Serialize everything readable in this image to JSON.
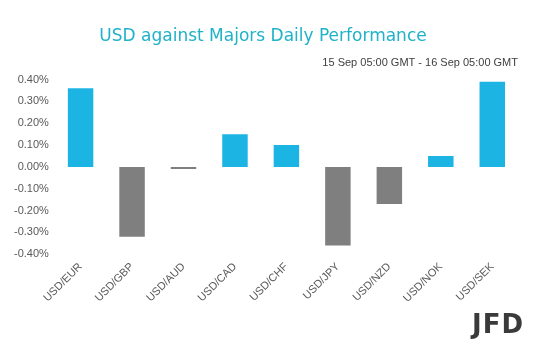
{
  "chart_data": {
    "type": "bar",
    "title": "USD against Majors Daily Performance",
    "subtitle": "15 Sep 05:00 GMT - 16 Sep 05:00 GMT",
    "categories": [
      "USD/EUR",
      "USD/GBP",
      "USD/AUD",
      "USD/CAD",
      "USD/CHF",
      "USD/JPY",
      "USD/NZD",
      "USD/NOK",
      "USD/SEK"
    ],
    "values": [
      0.36,
      -0.32,
      -0.01,
      0.15,
      0.1,
      -0.36,
      -0.17,
      0.05,
      0.39
    ],
    "colors": [
      "#1cb4e3",
      "#7f7f7f",
      "#7f7f7f",
      "#1cb4e3",
      "#1cb4e3",
      "#7f7f7f",
      "#7f7f7f",
      "#1cb4e3",
      "#1cb4e3"
    ],
    "ylim": [
      -0.4,
      0.4
    ],
    "yticks": [
      {
        "value": -0.4,
        "label": "-0.40%"
      },
      {
        "value": -0.3,
        "label": "-0.30%"
      },
      {
        "value": -0.2,
        "label": "-0.20%"
      },
      {
        "value": -0.1,
        "label": "-0.10%"
      },
      {
        "value": 0,
        "label": "0.00%"
      },
      {
        "value": 0.1,
        "label": "0.10%"
      },
      {
        "value": 0.2,
        "label": "0.20%"
      },
      {
        "value": 0.3,
        "label": "0.30%"
      },
      {
        "value": 0.4,
        "label": "0.40%"
      }
    ],
    "grid": false
  },
  "logo": "JFD"
}
